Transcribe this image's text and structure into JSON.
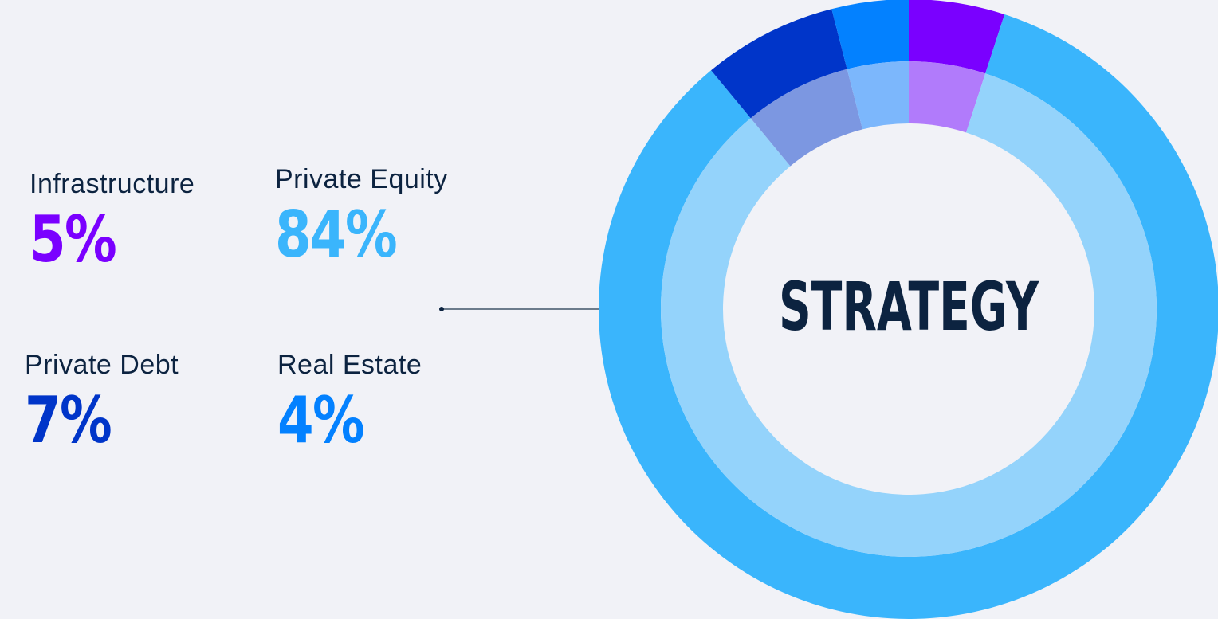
{
  "chart_data": {
    "type": "pie",
    "title": "STRATEGY",
    "categories": [
      "Infrastructure",
      "Private Equity",
      "Private Debt",
      "Real Estate"
    ],
    "values": [
      5,
      84,
      7,
      4
    ],
    "value_labels": [
      "5%",
      "84%",
      "7%",
      "4%"
    ],
    "colors": [
      "#7a00ff",
      "#3ab5fc",
      "#0035c9",
      "#0381ff"
    ],
    "inner_colors": [
      "#b17bfb",
      "#94d3fb",
      "#7c97e1",
      "#7cb7fc"
    ],
    "order": [
      0,
      1,
      2,
      3
    ]
  }
}
